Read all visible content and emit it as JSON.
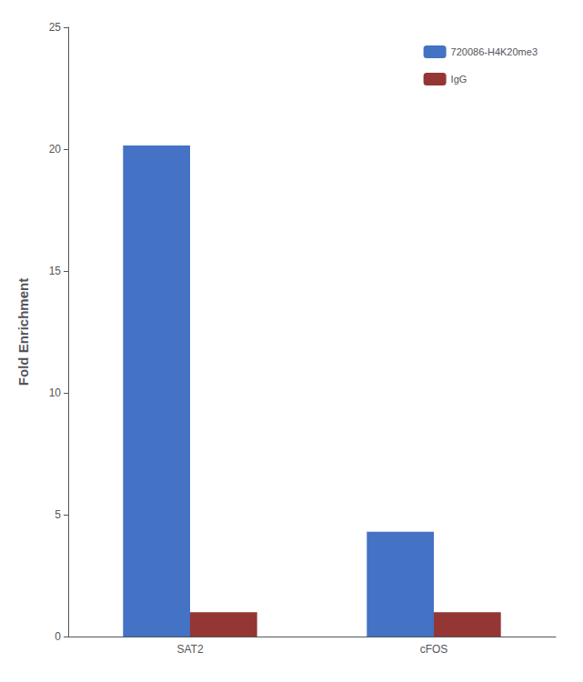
{
  "chart_data": {
    "type": "bar",
    "categories": [
      "SAT2",
      "cFOS"
    ],
    "series": [
      {
        "name": "720086-H4K20me3",
        "color": "#4472C4",
        "values": [
          20.15,
          4.3
        ]
      },
      {
        "name": "IgG",
        "color": "#943634",
        "values": [
          1.0,
          1.0
        ]
      }
    ],
    "ylabel": "Fold Enrichment",
    "ylim": [
      0,
      25
    ],
    "yticks": [
      0,
      5,
      10,
      15,
      20,
      25
    ],
    "grid": false,
    "legend": "upper right"
  }
}
